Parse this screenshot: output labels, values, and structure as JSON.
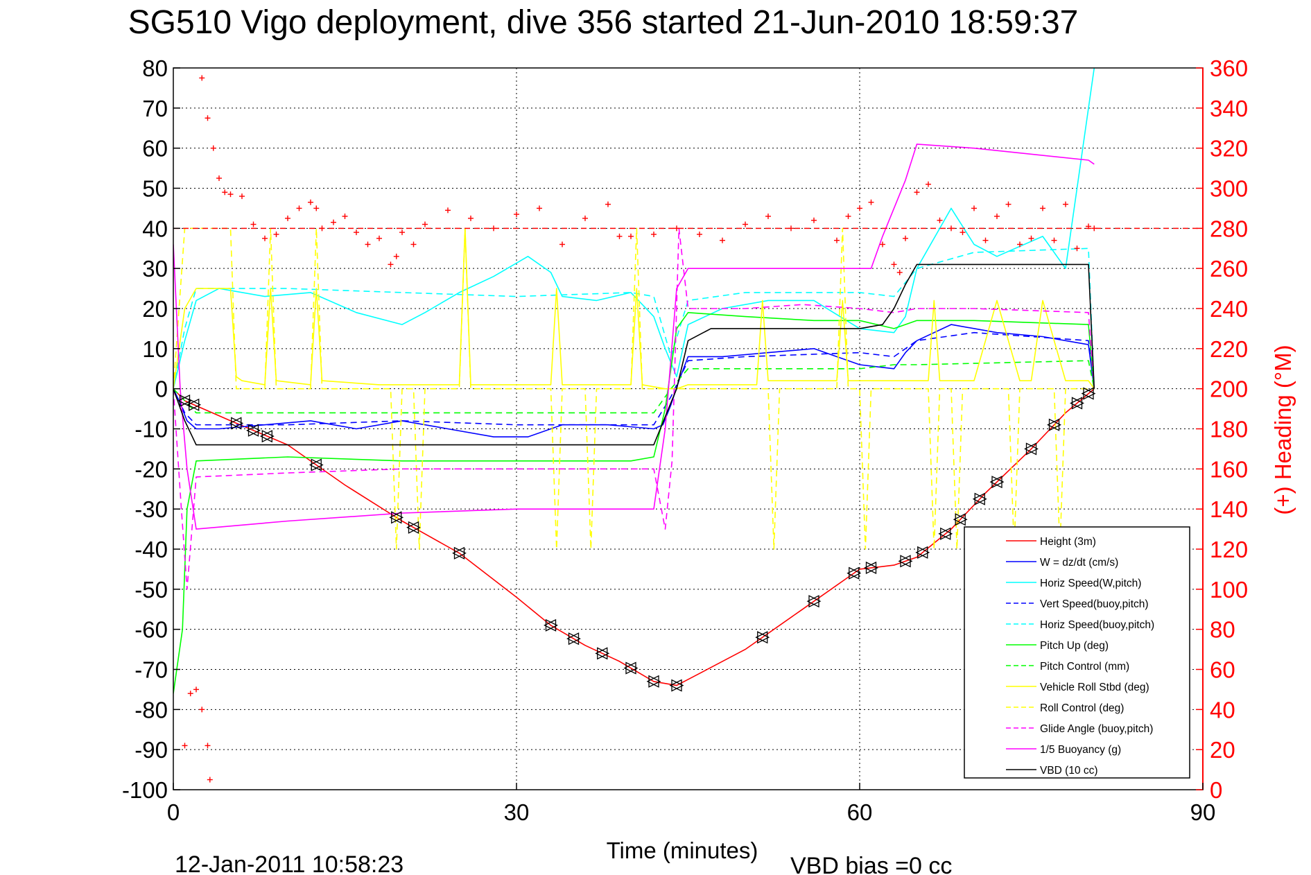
{
  "chart_data": {
    "type": "line",
    "title": "SG510 Vigo deployment, dive 356 started 21-Jun-2010 18:59:37",
    "xlabel": "Time (minutes)",
    "ylabel": "",
    "y2label": "(+) Heading (°M)",
    "xlim": [
      0,
      90
    ],
    "ylim": [
      -100,
      80
    ],
    "y2lim": [
      0,
      360
    ],
    "x_ticks": [
      "0",
      "30",
      "60",
      "90"
    ],
    "y_ticks": [
      "80",
      "70",
      "60",
      "50",
      "40",
      "30",
      "20",
      "10",
      "0",
      "-10",
      "-20",
      "-30",
      "-40",
      "-50",
      "-60",
      "-70",
      "-80",
      "-90",
      "-100"
    ],
    "y2_ticks": [
      "360",
      "340",
      "320",
      "300",
      "280",
      "260",
      "240",
      "220",
      "200",
      "180",
      "160",
      "140",
      "120",
      "100",
      "80",
      "60",
      "40",
      "20",
      "0"
    ],
    "grid": true,
    "legend_position": "bottom-right",
    "footer_left": "12-Jan-2011 10:58:23",
    "footer_right": "VBD bias =0 cc",
    "colors": {
      "height": "#ff0000",
      "w": "#0000ff",
      "horiz": "#00ffff",
      "vert_buoy": "#0000ff",
      "horiz_buoy": "#00ffff",
      "pitch": "#00ff00",
      "pitch_ctrl": "#00ff00",
      "roll": "#ffff00",
      "roll_ctrl": "#ffff00",
      "glide": "#ff00ff",
      "buoyancy": "#ff00ff",
      "vbd": "#000000",
      "heading": "#ff0000"
    },
    "series": [
      {
        "name": "Height (3m)",
        "color": "#ff0000",
        "dash": false,
        "x": [
          0,
          1,
          5,
          10,
          15,
          20,
          25,
          30,
          33,
          36,
          39,
          42,
          44,
          46,
          50,
          55,
          60,
          63,
          65,
          68,
          71,
          75,
          78,
          80.5
        ],
        "y": [
          0,
          -3,
          -8,
          -14,
          -24,
          -33,
          -41,
          -52,
          -59,
          -64,
          -68,
          -73,
          -74,
          -71,
          -65,
          -55,
          -45,
          -44,
          -42,
          -35,
          -26,
          -15,
          -6,
          0
        ]
      },
      {
        "name": "W = dz/dt (cm/s)",
        "color": "#0000ff",
        "dash": false,
        "x": [
          0,
          0.5,
          1.2,
          2,
          4,
          8,
          12,
          16,
          20,
          24,
          28,
          31,
          34,
          38,
          42,
          42.8,
          43.5,
          44.2,
          45,
          48,
          52,
          56,
          60,
          63,
          64,
          65,
          68,
          72,
          76,
          80,
          80.5
        ],
        "y": [
          0,
          -3,
          -8,
          -10,
          -10,
          -9,
          -8,
          -10,
          -8,
          -10,
          -12,
          -12,
          -9,
          -9,
          -10,
          -9,
          -4,
          2,
          8,
          8,
          9,
          10,
          6,
          5,
          9,
          12,
          16,
          14,
          13,
          11,
          0
        ]
      },
      {
        "name": "Horiz Speed(W,pitch)",
        "color": "#00ffff",
        "dash": false,
        "x": [
          0,
          1,
          2,
          4,
          8,
          12,
          16,
          20,
          22,
          25,
          28,
          31,
          33,
          34,
          37,
          40,
          42,
          43,
          44,
          45,
          48,
          52,
          56,
          60,
          63,
          64,
          65,
          68,
          70,
          72,
          76,
          78,
          80.5
        ],
        "y": [
          0,
          12,
          22,
          25,
          23,
          24,
          19,
          16,
          19,
          24,
          28,
          33,
          29,
          23,
          22,
          24,
          18,
          10,
          3,
          16,
          20,
          22,
          22,
          15,
          14,
          18,
          30,
          45,
          36,
          33,
          38,
          30,
          80
        ]
      },
      {
        "name": "Vert Speed(buoy,pitch)",
        "color": "#0000ff",
        "dash": true,
        "x": [
          0,
          1,
          2,
          10,
          20,
          30,
          40,
          42,
          43.5,
          45,
          50,
          60,
          63,
          65,
          70,
          80,
          80.5
        ],
        "y": [
          0,
          -6,
          -9,
          -9,
          -8,
          -9,
          -9,
          -9,
          -2,
          7,
          8,
          9,
          8,
          12,
          14,
          12,
          0
        ]
      },
      {
        "name": "Horiz Speed(buoy,pitch)",
        "color": "#00ffff",
        "dash": true,
        "x": [
          0,
          1,
          2,
          10,
          20,
          30,
          40,
          42,
          43.5,
          45,
          50,
          60,
          63,
          65,
          70,
          80,
          80.5
        ],
        "y": [
          0,
          15,
          25,
          25,
          24,
          23,
          24,
          23,
          8,
          22,
          24,
          24,
          23,
          30,
          34,
          35,
          0
        ]
      },
      {
        "name": "Pitch Up (deg)",
        "color": "#00ff00",
        "dash": false,
        "x": [
          0,
          0.8,
          1.2,
          2,
          10,
          20,
          30,
          40,
          42,
          43,
          44,
          45,
          50,
          56,
          60,
          63,
          65,
          70,
          80,
          80.5
        ],
        "y": [
          -76,
          -60,
          -30,
          -18,
          -17,
          -18,
          -18,
          -18,
          -17,
          -5,
          15,
          19,
          18,
          17,
          17,
          15,
          17,
          17,
          16,
          0
        ]
      },
      {
        "name": "Pitch Control (mm)",
        "color": "#00ff00",
        "dash": true,
        "x": [
          0,
          1,
          2,
          40,
          42,
          43.5,
          45,
          60,
          63,
          65,
          80,
          80.5
        ],
        "y": [
          0,
          -3,
          -6,
          -6,
          -6,
          0,
          5,
          5,
          6,
          6,
          7,
          0
        ]
      },
      {
        "name": "Vehicle Roll Stbd (deg)",
        "color": "#ffff00",
        "dash": false,
        "x": [
          0,
          1,
          2,
          5,
          5.5,
          6,
          8,
          8.5,
          9,
          12,
          12.5,
          13,
          18,
          20,
          25,
          25.5,
          26,
          30,
          33,
          33.5,
          34,
          40,
          40.5,
          41,
          43,
          44,
          45,
          50,
          51,
          51.5,
          52,
          58,
          58.5,
          59,
          60,
          65,
          66,
          66.5,
          67,
          68,
          70,
          72,
          74,
          75,
          76,
          78,
          80,
          80.5
        ],
        "y": [
          0,
          20,
          25,
          25,
          3,
          2,
          1,
          25,
          2,
          1,
          25,
          2,
          1,
          1,
          1,
          40,
          1,
          1,
          1,
          25,
          1,
          1,
          25,
          1,
          0,
          0,
          1,
          1,
          1,
          22,
          2,
          2,
          22,
          2,
          2,
          2,
          2,
          22,
          2,
          2,
          2,
          22,
          2,
          2,
          22,
          2,
          2,
          0
        ]
      },
      {
        "name": "Roll Control (deg)",
        "color": "#ffff00",
        "dash": true,
        "x": [
          0,
          1,
          2,
          5,
          5.5,
          6,
          8,
          8.5,
          9,
          12,
          12.5,
          13,
          19,
          19.5,
          20,
          21,
          21.5,
          22,
          25,
          25.5,
          26,
          33,
          33.5,
          34,
          36,
          36.5,
          37,
          40,
          40.5,
          41,
          43,
          45,
          52,
          52.5,
          53,
          58,
          58.5,
          59,
          60,
          60.5,
          61,
          66,
          66.5,
          67,
          68,
          68.5,
          69,
          73,
          73.5,
          74,
          77,
          77.5,
          78,
          80,
          80.5
        ],
        "y": [
          0,
          40,
          40,
          40,
          0,
          0,
          0,
          40,
          0,
          0,
          40,
          0,
          0,
          -40,
          0,
          0,
          -40,
          0,
          0,
          40,
          0,
          0,
          -40,
          0,
          0,
          -40,
          0,
          0,
          40,
          0,
          0,
          0,
          0,
          -40,
          0,
          0,
          40,
          0,
          0,
          -40,
          0,
          0,
          -40,
          0,
          0,
          -40,
          0,
          0,
          -40,
          0,
          0,
          -40,
          0,
          0,
          0
        ]
      },
      {
        "name": "Glide Angle (buoy,pitch)",
        "color": "#ff00ff",
        "dash": true,
        "x": [
          0,
          0.7,
          1.2,
          2,
          10,
          20,
          30,
          40,
          42,
          43,
          43.6,
          44.2,
          45,
          50,
          55,
          60,
          63,
          65,
          70,
          80,
          80.5
        ],
        "y": [
          0,
          -30,
          -50,
          -22,
          -21,
          -20,
          -20,
          -20,
          -20,
          -35,
          -18,
          40,
          20,
          20,
          21,
          20,
          19,
          20,
          20,
          19,
          0
        ]
      },
      {
        "name": "1/5 Buoyancy (g)",
        "color": "#ff00ff",
        "dash": false,
        "x": [
          0,
          0.6,
          1.2,
          2,
          10,
          20,
          30,
          40,
          42,
          43,
          44,
          45,
          50,
          60,
          61,
          62,
          63,
          64,
          65,
          70,
          80,
          80.5
        ],
        "y": [
          36,
          0,
          -20,
          -35,
          -33,
          -31,
          -30,
          -30,
          -30,
          -10,
          25,
          30,
          30,
          30,
          30,
          38,
          45,
          52,
          61,
          60,
          57,
          56
        ]
      },
      {
        "name": "VBD (10 cc)",
        "color": "#000000",
        "dash": false,
        "x": [
          0,
          1,
          2,
          42,
          44,
          45,
          47,
          60,
          62,
          63,
          64,
          65,
          80,
          80.5
        ],
        "y": [
          0,
          -8,
          -14,
          -14,
          0,
          12,
          15,
          15,
          16,
          20,
          26,
          31,
          31,
          0
        ]
      }
    ],
    "heading": {
      "name": "Heading",
      "axis": "right",
      "color": "#ff0000",
      "reference": 280,
      "x": [
        2.5,
        3,
        3.5,
        4,
        4.5,
        5,
        6,
        7,
        8,
        9,
        10,
        11,
        12,
        12.5,
        13,
        14,
        15,
        16,
        17,
        18,
        19,
        19.5,
        20,
        21,
        22,
        24,
        26,
        28,
        30,
        32,
        34,
        36,
        38,
        39,
        40,
        42,
        44,
        46,
        48,
        50,
        52,
        54,
        56,
        58,
        59,
        60,
        61,
        62,
        63,
        63.5,
        64,
        65,
        66,
        67,
        68,
        69,
        70,
        71,
        72,
        73,
        74,
        75,
        76,
        77,
        78,
        79,
        80,
        80.5,
        1,
        1.5,
        2,
        2.5,
        3,
        3.2
      ],
      "y": [
        355,
        335,
        320,
        305,
        298,
        297,
        296,
        282,
        275,
        277,
        285,
        290,
        293,
        290,
        280,
        283,
        286,
        278,
        272,
        275,
        262,
        266,
        278,
        272,
        282,
        289,
        285,
        280,
        287,
        290,
        272,
        285,
        292,
        276,
        276,
        277,
        280,
        277,
        274,
        282,
        286,
        280,
        284,
        274,
        286,
        290,
        293,
        272,
        262,
        258,
        275,
        298,
        302,
        284,
        280,
        278,
        290,
        274,
        286,
        292,
        272,
        275,
        290,
        274,
        292,
        270,
        281,
        280,
        22,
        48,
        50,
        40,
        22,
        5
      ]
    }
  }
}
